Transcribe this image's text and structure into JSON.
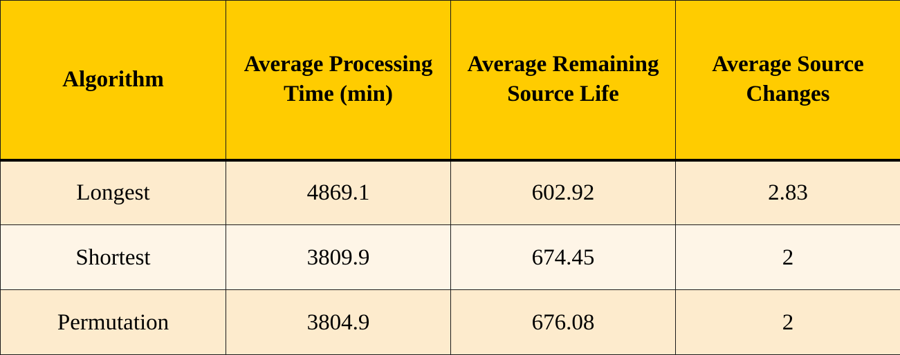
{
  "table": {
    "headers": [
      "Algorithm",
      "Average Processing Time (min)",
      "Average Remaining Source Life",
      "Average Source Changes"
    ],
    "rows": [
      {
        "algorithm": "Longest",
        "processing_time": "4869.1",
        "remaining_life": "602.92",
        "source_changes": "2.83"
      },
      {
        "algorithm": "Shortest",
        "processing_time": "3809.9",
        "remaining_life": "674.45",
        "source_changes": "2"
      },
      {
        "algorithm": "Permutation",
        "processing_time": "3804.9",
        "remaining_life": "676.08",
        "source_changes": "2"
      }
    ]
  },
  "colors": {
    "header_background": "#ffcc00",
    "row_odd_background": "#fdebcd",
    "row_even_background": "#fef5e7",
    "border": "#1a1a1a"
  }
}
